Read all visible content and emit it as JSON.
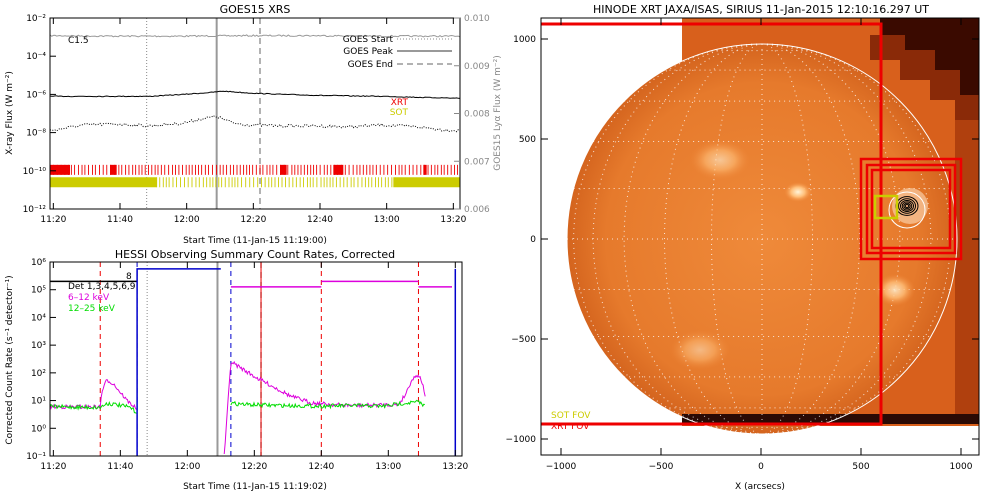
{
  "goes": {
    "title": "GOES15 XRS",
    "ylabel": "X-ray Flux (W m⁻²)",
    "ylabel_right": "GOES15 Lyα Flux (W m⁻²)",
    "xlabel": "Start Time (11-Jan-15 11:19:00)",
    "flare_class": "C1.5",
    "legend": {
      "start": "GOES Start",
      "peak": "GOES Peak",
      "end": "GOES End"
    },
    "obs_labels": {
      "xrt": "XRT",
      "sot": "SOT"
    },
    "colors": {
      "xrt": "#ee0000",
      "sot": "#cccc00"
    }
  },
  "hessi": {
    "title": "HESSI Observing Summary Count Rates, Corrected",
    "ylabel": "Corrected Count Rate (s⁻¹ detector⁻¹)",
    "xlabel": "Start Time (11-Jan-15 11:19:02)",
    "legend": [
      {
        "name": "Det 1,3,4,5,6,9",
        "color": "#000000"
      },
      {
        "name": "6–12 keV",
        "color": "#dd00dd"
      },
      {
        "name": "12–25 keV",
        "color": "#00dd00"
      }
    ],
    "annotation": "8"
  },
  "hinode": {
    "title": "HINODE XRT JAXA/ISAS, SIRIUS 11-Jan-2015 12:10:16.297 UT",
    "xlabel": "X (arcsecs)",
    "fov_labels": {
      "sot": "SOT FOV",
      "xrt": "XRT FOV"
    },
    "colors": {
      "sot": "#cccc00",
      "xrt": "#ee0000"
    }
  },
  "chart_data": [
    {
      "type": "line",
      "title": "GOES15 XRS",
      "xlabel": "Start Time (11-Jan-15 11:19:00)",
      "ylabel": "X-ray Flux (W m⁻²)",
      "xticks": [
        "11:20",
        "11:40",
        "12:00",
        "12:20",
        "12:40",
        "13:00",
        "13:20"
      ],
      "yticks": [
        "10⁻¹²",
        "10⁻¹⁰",
        "10⁻⁸",
        "10⁻⁶",
        "10⁻⁴",
        "10⁻²"
      ],
      "yticks_right": [
        "0.006",
        "0.007",
        "0.008",
        "0.009",
        "0.010"
      ],
      "xlim_minutes": [
        0,
        123
      ],
      "ylim_log10": [
        -12,
        -2
      ],
      "ylim_right": [
        0.006,
        0.01
      ],
      "events": {
        "start_min": 29,
        "peak_min": 50,
        "end_min": 63
      },
      "series": [
        {
          "name": "Lyman-alpha (right axis)",
          "color": "#999999",
          "style": "solid",
          "x": [
            0,
            20,
            40,
            60,
            80,
            100,
            123
          ],
          "y_right": [
            0.00963,
            0.00962,
            0.00962,
            0.00963,
            0.00963,
            0.00962,
            0.00962
          ]
        },
        {
          "name": "long channel",
          "color": "#000000",
          "style": "solid",
          "x": [
            0,
            10,
            20,
            30,
            40,
            48,
            52,
            56,
            60,
            70,
            80,
            90,
            100,
            110,
            123
          ],
          "y_log10": [
            -6.1,
            -6.1,
            -6.1,
            -6.1,
            -6.0,
            -5.9,
            -5.83,
            -5.88,
            -5.93,
            -6.0,
            -6.05,
            -6.08,
            -6.1,
            -6.15,
            -6.2
          ]
        },
        {
          "name": "short channel",
          "color": "#000000",
          "style": "dotted",
          "x": [
            0,
            10,
            20,
            30,
            40,
            45,
            48,
            50,
            52,
            55,
            60,
            70,
            80,
            90,
            100,
            110,
            118,
            123
          ],
          "y_log10": [
            -7.9,
            -7.6,
            -7.55,
            -7.65,
            -7.5,
            -7.3,
            -7.2,
            -7.15,
            -7.3,
            -7.5,
            -7.6,
            -7.65,
            -7.65,
            -7.7,
            -7.6,
            -7.7,
            -7.85,
            -7.9
          ]
        }
      ],
      "obs_bars": [
        {
          "name": "XRT",
          "color": "#ee0000",
          "y_log10": -9.95,
          "dense_ranges_min": [
            [
              0,
              6
            ],
            [
              18,
              20
            ],
            [
              69,
              71
            ],
            [
              85,
              88
            ],
            [
              112,
              113
            ]
          ],
          "sparse_range_min": [
            0,
            123
          ]
        },
        {
          "name": "SOT",
          "color": "#cccc00",
          "y_log10": -10.6,
          "dense_ranges_min": [
            [
              0,
              32
            ],
            [
              103,
              123
            ]
          ],
          "sparse_range_min": [
            32,
            103
          ]
        }
      ]
    },
    {
      "type": "line",
      "title": "HESSI Observing Summary Count Rates, Corrected",
      "xlabel": "Start Time (11-Jan-15 11:19:02)",
      "ylabel": "Corrected Count Rate (s⁻¹ detector⁻¹)",
      "xticks": [
        "11:20",
        "11:40",
        "12:00",
        "12:20",
        "12:40",
        "13:00",
        "13:20"
      ],
      "yticks": [
        "10⁻¹",
        "10⁰",
        "10¹",
        "10²",
        "10³",
        "10⁴",
        "10⁵",
        "10⁶"
      ],
      "xlim_minutes": [
        0,
        123
      ],
      "ylim_log10": [
        -1,
        6
      ],
      "events": {
        "start_min": 29,
        "peak_min": 50,
        "end_min": 63
      },
      "night_boundaries_min": [
        15,
        81,
        110
      ],
      "saa_boundaries_min": [
        26,
        54
      ],
      "series": [
        {
          "name": "Det 1,3,4,5,6,9",
          "color": "#000000",
          "segments": [
            {
              "x": [
                0,
                26
              ],
              "y_log10": [
                5.3,
                5.3
              ]
            }
          ]
        },
        {
          "name": "6–12 keV",
          "color": "#dd00dd",
          "segments": [
            {
              "x": [
                0,
                15,
                15.5,
                17,
                19,
                21,
                23,
                25,
                26
              ],
              "y_log10": [
                0.78,
                0.77,
                1.35,
                1.75,
                1.6,
                1.3,
                1.0,
                0.8,
                0.7
              ]
            },
            {
              "x": [
                52,
                54,
                56,
                62,
                67,
                72,
                78,
                85,
                92,
                100,
                104,
                106,
                108,
                110,
                111,
                112
              ],
              "y_log10": [
                -1,
                2.4,
                2.25,
                1.8,
                1.48,
                1.15,
                0.92,
                0.85,
                0.82,
                0.85,
                0.85,
                1.2,
                1.75,
                1.95,
                1.7,
                1.2
              ]
            },
            {
              "x": [
                54,
                81
              ],
              "y_log10": [
                5.1,
                5.1
              ]
            },
            {
              "x": [
                81,
                110
              ],
              "y_log10": [
                5.3,
                5.3
              ]
            },
            {
              "x": [
                110,
                120
              ],
              "y_log10": [
                5.1,
                5.1
              ]
            }
          ]
        },
        {
          "name": "12–25 keV",
          "color": "#00dd00",
          "segments": [
            {
              "x": [
                0,
                15,
                17,
                20,
                24,
                26
              ],
              "y_log10": [
                0.78,
                0.75,
                0.9,
                0.85,
                0.75,
                0.55
              ]
            },
            {
              "x": [
                54,
                60,
                70,
                80,
                90,
                100,
                105,
                110,
                112
              ],
              "y_log10": [
                0.9,
                0.85,
                0.82,
                0.8,
                0.82,
                0.8,
                0.9,
                0.95,
                0.8
              ]
            }
          ]
        },
        {
          "name": "blue (attenuator/background)",
          "color": "#0000cc",
          "segments": [
            {
              "x": [
                26,
                26,
                51
              ],
              "y_log10": [
                -1,
                5.75,
                5.75
              ]
            },
            {
              "x": [
                121,
                121
              ],
              "y_log10": [
                -1,
                5.75
              ]
            }
          ]
        }
      ]
    },
    {
      "type": "image",
      "title": "HINODE XRT JAXA/ISAS, SIRIUS 11-Jan-2015 12:10:16.297 UT",
      "xlabel": "X (arcsecs)",
      "xticks": [
        -1000,
        -500,
        0,
        500,
        1000
      ],
      "yticks": [
        -1000,
        -500,
        0,
        500,
        1000
      ],
      "xlim": [
        -1100,
        1100
      ],
      "ylim": [
        -1000,
        1100
      ],
      "solar_limb_radius_arcsec": 975,
      "grid": true,
      "fov_boxes": [
        {
          "name": "XRT",
          "color": "#ee0000",
          "center": [
            750,
            150
          ],
          "size": 500
        },
        {
          "name": "XRT",
          "color": "#ee0000",
          "center": [
            750,
            150
          ],
          "size": 440
        },
        {
          "name": "XRT",
          "color": "#ee0000",
          "center": [
            750,
            150
          ],
          "size": 390
        },
        {
          "name": "XRT",
          "color": "#ee0000",
          "center": [
            -400,
            75
          ],
          "size": 2000
        },
        {
          "name": "SOT",
          "color": "#cccc00",
          "center": [
            625,
            160
          ],
          "size": 110
        }
      ],
      "contour_center": [
        730,
        165
      ]
    }
  ]
}
